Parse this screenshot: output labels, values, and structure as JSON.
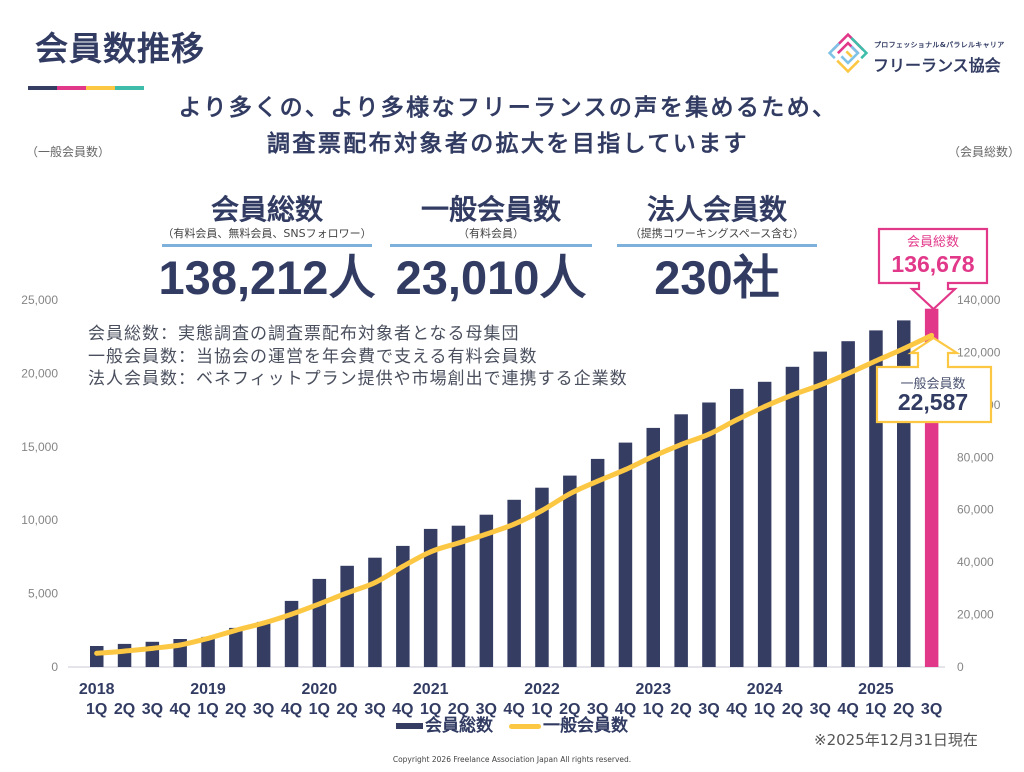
{
  "colors": {
    "navy": "#353d63",
    "pink": "#e2388a",
    "yellow": "#fcc843",
    "teal": "#3dbdaa",
    "rule_blue": "#7db1dc",
    "light_blue": "#7ec3e6"
  },
  "header": {
    "title": "会員数推移",
    "subtitle_lines": [
      "より多くの、より多様なフリーランスの声を集めるため、",
      "調査票配布対象者の拡大を目指しています"
    ],
    "axis_caption_left": "（一般会員数）",
    "axis_caption_right": "（会員総数）"
  },
  "logo": {
    "tagline": "プロフェッショナル&パラレルキャリア",
    "name": "フリーランス協会"
  },
  "stats": [
    {
      "heading": "会員総数",
      "note": "（有料会員、無料会員、SNSフォロワー）",
      "value": "138,212人"
    },
    {
      "heading": "一般会員数",
      "note": "（有料会員）",
      "value": "23,010人"
    },
    {
      "heading": "法人会員数",
      "note": "（提携コワーキングスペース含む）",
      "value": "230社"
    }
  ],
  "descriptions": [
    "会員総数：実態調査の調査票配布対象者となる母集団",
    "一般会員数：当協会の運営を年会費で支える有料会員数",
    "法人会員数：ベネフィットプラン提供や市場創出で連携する企業数"
  ],
  "legend": [
    {
      "label": "会員総数",
      "marker": "bar"
    },
    {
      "label": "一般会員数",
      "marker": "line"
    }
  ],
  "as_of": "※2025年12月31日現在",
  "copyright": "Copyright 2026 Freelance Association Japan  All rights reserved.",
  "chart_data": {
    "type": "bar",
    "title": "会員数推移",
    "grid": false,
    "categories": [
      "2018 1Q",
      "2018 2Q",
      "2018 3Q",
      "2018 4Q",
      "2019 1Q",
      "2019 2Q",
      "2019 3Q",
      "2019 4Q",
      "2020 1Q",
      "2020 2Q",
      "2020 3Q",
      "2020 4Q",
      "2021 1Q",
      "2021 2Q",
      "2021 3Q",
      "2021 4Q",
      "2022 1Q",
      "2022 2Q",
      "2022 3Q",
      "2022 4Q",
      "2023 1Q",
      "2023 2Q",
      "2023 3Q",
      "2023 4Q",
      "2024 1Q",
      "2024 2Q",
      "2024 3Q",
      "2024 4Q",
      "2025 1Q",
      "2025 2Q",
      "2025 3Q"
    ],
    "series": [
      {
        "name": "会員総数",
        "type": "bar",
        "axis": "right",
        "values": [
          8000,
          8800,
          9600,
          10700,
          11500,
          14900,
          17200,
          25200,
          33600,
          38600,
          41700,
          46200,
          52700,
          53900,
          58100,
          63800,
          68400,
          73000,
          79400,
          85600,
          91200,
          96400,
          100900,
          106100,
          108800,
          114500,
          120300,
          124300,
          128400,
          132200,
          136678
        ]
      },
      {
        "name": "一般会員数",
        "type": "line",
        "axis": "left",
        "values": [
          930,
          1080,
          1270,
          1500,
          1950,
          2500,
          3000,
          3600,
          4300,
          5050,
          5750,
          6850,
          7850,
          8450,
          9050,
          9730,
          10660,
          11800,
          12660,
          13450,
          14350,
          15150,
          15860,
          16840,
          17740,
          18530,
          19210,
          19990,
          20850,
          21690,
          22587
        ]
      }
    ],
    "highlight_category": "2025 3Q",
    "y_left": {
      "label": "（一般会員数）",
      "range": [
        0,
        25000
      ],
      "ticks": [
        0,
        5000,
        10000,
        15000,
        20000,
        25000
      ],
      "tick_labels": [
        "0",
        "5,000",
        "10,000",
        "15,000",
        "20,000",
        "25,000"
      ]
    },
    "y_right": {
      "label": "（会員総数）",
      "range": [
        0,
        140000
      ],
      "ticks": [
        0,
        20000,
        40000,
        60000,
        80000,
        100000,
        120000,
        140000
      ],
      "tick_labels": [
        "0",
        "20,000",
        "40,000",
        "60,000",
        "80,000",
        "100,000",
        "120,000",
        "140,000"
      ]
    },
    "x_year_labels": [
      {
        "label": "2018",
        "category_index": 0
      },
      {
        "label": "2019",
        "category_index": 4
      },
      {
        "label": "2020",
        "category_index": 8
      },
      {
        "label": "2021",
        "category_index": 12
      },
      {
        "label": "2022",
        "category_index": 16
      },
      {
        "label": "2023",
        "category_index": 20
      },
      {
        "label": "2024",
        "category_index": 24
      },
      {
        "label": "2025",
        "category_index": 28
      }
    ],
    "x_quarter_labels": [
      "1Q",
      "2Q",
      "3Q",
      "4Q",
      "1Q",
      "2Q",
      "3Q",
      "4Q",
      "1Q",
      "2Q",
      "3Q",
      "4Q",
      "1Q",
      "2Q",
      "3Q",
      "4Q",
      "1Q",
      "2Q",
      "3Q",
      "4Q",
      "1Q",
      "2Q",
      "3Q",
      "4Q",
      "1Q",
      "2Q",
      "3Q",
      "4Q",
      "1Q",
      "2Q",
      "3Q"
    ],
    "legend_position": "bottom",
    "annotations": [
      {
        "series": "会員総数",
        "category": "2025 3Q",
        "label": "会員総数",
        "value": "136,678"
      },
      {
        "series": "一般会員数",
        "category": "2025 3Q",
        "label": "一般会員数",
        "value": "22,587"
      }
    ]
  }
}
